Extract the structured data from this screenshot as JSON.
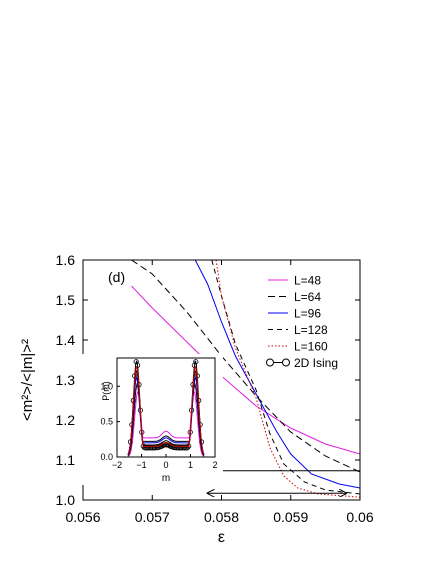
{
  "chart_data": [
    {
      "type": "line",
      "panel_label": "(d)",
      "xlabel": "ε",
      "ylabel": "<m²>/<|m|>²",
      "xlim": [
        0.056,
        0.06
      ],
      "ylim": [
        1.0,
        1.6
      ],
      "xticks": [
        "0.056",
        "0.057",
        "0.058",
        "0.059",
        "0.06"
      ],
      "yticks": [
        "1.0",
        "1.1",
        "1.2",
        "1.3",
        "1.4",
        "1.5",
        "1.6"
      ],
      "legend_position": "top-right",
      "reference_line": {
        "y": 1.0732
      },
      "arrow": {
        "x": [
          0.0578,
          0.0598
        ],
        "y": 1.017
      },
      "series": [
        {
          "name": "L=48",
          "color": "#e020e0",
          "dash": "solid",
          "x": [
            0.0567,
            0.057,
            0.0575,
            0.058,
            0.0585,
            0.059,
            0.0595,
            0.06
          ],
          "y": [
            1.535,
            1.48,
            1.395,
            1.31,
            1.235,
            1.18,
            1.14,
            1.115
          ]
        },
        {
          "name": "L=64",
          "color": "#000000",
          "dash": "long-dash",
          "x": [
            0.0567,
            0.057,
            0.0575,
            0.058,
            0.0585,
            0.059,
            0.0595,
            0.06
          ],
          "y": [
            1.6,
            1.565,
            1.47,
            1.36,
            1.26,
            1.17,
            1.11,
            1.07
          ]
        },
        {
          "name": "L=96",
          "color": "#0000ee",
          "dash": "solid",
          "x": [
            0.05762,
            0.0578,
            0.058,
            0.0582,
            0.0585,
            0.0588,
            0.059,
            0.0593,
            0.0597,
            0.06
          ],
          "y": [
            1.6,
            1.54,
            1.445,
            1.36,
            1.265,
            1.17,
            1.115,
            1.065,
            1.04,
            1.03
          ]
        },
        {
          "name": "L=128",
          "color": "#000000",
          "dash": "dash",
          "x": [
            0.05786,
            0.058,
            0.0582,
            0.0585,
            0.0587,
            0.0589,
            0.0592,
            0.0595,
            0.06
          ],
          "y": [
            1.6,
            1.51,
            1.39,
            1.275,
            1.165,
            1.09,
            1.045,
            1.025,
            1.015
          ]
        },
        {
          "name": "L=160",
          "color": "#cc0000",
          "dash": "dot",
          "x": [
            0.05792,
            0.058,
            0.0582,
            0.0585,
            0.0587,
            0.0589,
            0.0591,
            0.0594,
            0.06
          ],
          "y": [
            1.6,
            1.51,
            1.38,
            1.255,
            1.13,
            1.06,
            1.03,
            1.015,
            1.007
          ]
        },
        {
          "name": "2D Ising",
          "color": "#000000",
          "dash": "solid",
          "marker": "circle",
          "legend_only": true
        }
      ]
    },
    {
      "type": "line",
      "inset": true,
      "xlabel": "m",
      "ylabel": "P(m)",
      "xlim": [
        -2,
        2
      ],
      "ylim": [
        0,
        1.4
      ],
      "xticks": [
        "−2",
        "−1",
        "0",
        "1",
        "2"
      ],
      "yticks": [
        "0.0",
        "0.5",
        "1.0"
      ],
      "series": [
        {
          "name": "2D Ising",
          "color": "#000000",
          "marker": "circle",
          "peak_x": 1.2,
          "peak_y": 1.36,
          "center_y": 0.13
        },
        {
          "name": "L=48",
          "color": "#e020e0",
          "peak_x": 1.15,
          "peak_y": 0.92,
          "center_y": 0.27
        },
        {
          "name": "L=64",
          "color": "#000000",
          "peak_x": 1.18,
          "peak_y": 1.02,
          "center_y": 0.22
        },
        {
          "name": "L=96",
          "color": "#0000ee",
          "peak_x": 1.2,
          "peak_y": 1.12,
          "center_y": 0.2
        },
        {
          "name": "L=128",
          "color": "#000000",
          "peak_x": 1.2,
          "peak_y": 1.22,
          "center_y": 0.17
        },
        {
          "name": "L=160",
          "color": "#cc0000",
          "peak_x": 1.2,
          "peak_y": 1.28,
          "center_y": 0.15
        }
      ]
    }
  ]
}
